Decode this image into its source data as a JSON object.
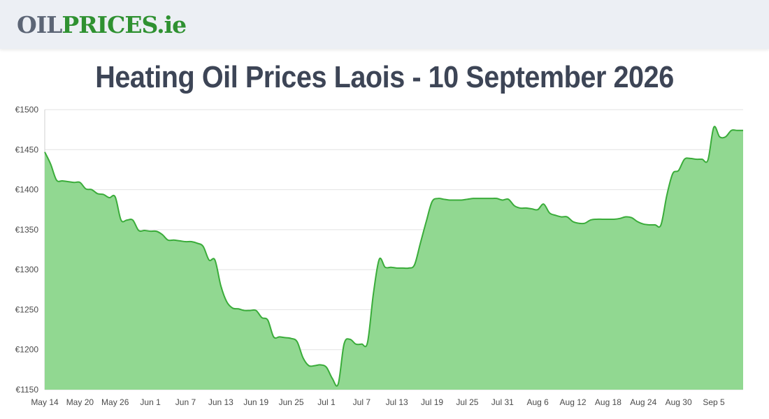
{
  "header": {
    "logo_part1": "OIL",
    "logo_part2": "PRICES",
    "logo_part3": ".ie",
    "logo_colors": {
      "oil": "#5c6575",
      "prices": "#2f9131"
    }
  },
  "page": {
    "title": "Heating Oil Prices Laois - 10 September 2026"
  },
  "chart_data": {
    "type": "area",
    "title": "",
    "xlabel": "",
    "ylabel": "",
    "ylim": [
      1150,
      1500
    ],
    "yticks": [
      1150,
      1200,
      1250,
      1300,
      1350,
      1400,
      1450,
      1500
    ],
    "y_tick_prefix": "€",
    "x_tick_labels": [
      "May 14",
      "May 20",
      "May 26",
      "Jun 1",
      "Jun 7",
      "Jun 13",
      "Jun 19",
      "Jun 25",
      "Jul 1",
      "Jul 7",
      "Jul 13",
      "Jul 19",
      "Jul 25",
      "Jul 31",
      "Aug 6",
      "Aug 12",
      "Aug 18",
      "Aug 24",
      "Aug 30",
      "Sep 5"
    ],
    "x_range_days": [
      0,
      119
    ],
    "grid": true,
    "colors": {
      "fill": "#91d891",
      "line": "#3aac3a"
    },
    "series": [
      {
        "x": [
          0,
          1,
          2,
          3,
          4,
          5,
          6,
          7,
          8,
          9,
          10,
          11,
          12,
          13,
          14,
          15,
          16,
          17,
          18,
          19,
          20,
          21,
          22,
          23,
          24,
          25,
          26,
          27,
          28,
          29,
          30,
          31,
          32,
          33,
          34,
          35,
          36,
          37,
          38,
          39,
          40,
          41,
          42,
          43,
          44,
          45,
          46,
          47,
          48,
          49,
          50,
          51,
          52,
          53,
          54,
          55,
          56,
          57,
          58,
          59,
          60,
          61,
          62,
          63,
          64,
          65,
          66,
          67,
          68,
          69,
          70,
          71,
          72,
          73,
          74,
          75,
          76,
          77,
          78,
          79,
          80,
          81,
          82,
          83,
          84,
          85,
          86,
          87,
          88,
          89,
          90,
          91,
          92,
          93,
          94,
          95,
          96,
          97,
          98,
          99,
          100,
          101,
          102,
          103,
          104,
          105,
          106,
          107,
          108,
          109,
          110,
          111,
          112,
          113,
          114,
          115,
          116,
          117,
          118,
          119
        ],
        "values": [
          1447,
          1432,
          1412,
          1411,
          1410,
          1409,
          1409,
          1401,
          1400,
          1395,
          1394,
          1390,
          1391,
          1362,
          1362,
          1362,
          1349,
          1349,
          1348,
          1348,
          1344,
          1337,
          1337,
          1336,
          1335,
          1335,
          1333,
          1329,
          1312,
          1312,
          1280,
          1260,
          1252,
          1251,
          1249,
          1249,
          1249,
          1240,
          1237,
          1216,
          1216,
          1215,
          1214,
          1210,
          1190,
          1180,
          1180,
          1181,
          1178,
          1164,
          1157,
          1207,
          1213,
          1207,
          1207,
          1209,
          1270,
          1313,
          1303,
          1303,
          1302,
          1302,
          1302,
          1306,
          1333,
          1360,
          1385,
          1389,
          1388,
          1387,
          1387,
          1387,
          1388,
          1389,
          1389,
          1389,
          1389,
          1389,
          1387,
          1388,
          1380,
          1377,
          1377,
          1376,
          1375,
          1382,
          1371,
          1368,
          1366,
          1366,
          1360,
          1358,
          1358,
          1362,
          1363,
          1363,
          1363,
          1363,
          1364,
          1366,
          1365,
          1360,
          1357,
          1356,
          1356,
          1356,
          1393,
          1420,
          1424,
          1438,
          1439,
          1438,
          1438,
          1437,
          1478,
          1466,
          1466,
          1474,
          1474,
          1474
        ]
      }
    ]
  }
}
